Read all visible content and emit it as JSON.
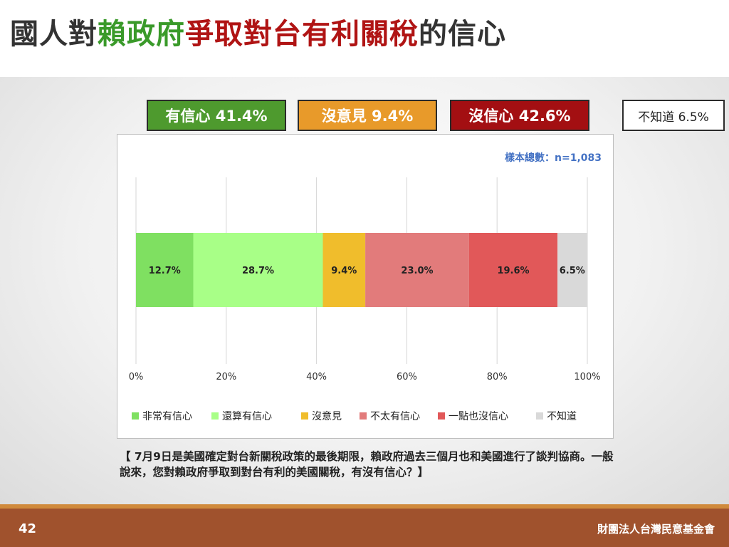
{
  "title": {
    "part1": "國人對",
    "part2": "賴政府",
    "part3": "爭取對台有利關稅",
    "part4": "的信心",
    "colors": [
      "#333333",
      "#3a9a2a",
      "#b01414",
      "#333333"
    ]
  },
  "summary": [
    {
      "label": "有信心 41.4%",
      "bg": "#4e9a2e"
    },
    {
      "label": "沒意見 9.4%",
      "bg": "#e89a2a"
    },
    {
      "label": "沒信心 42.6%",
      "bg": "#a30f12"
    },
    {
      "label": "不知道 6.5%",
      "bg": "#ffffff"
    }
  ],
  "sample_note": "樣本總數：n=1,083",
  "chart_data": {
    "type": "bar",
    "orientation": "horizontal",
    "stacked": true,
    "xlim": [
      0,
      100
    ],
    "x_ticks": [
      "0%",
      "20%",
      "40%",
      "60%",
      "80%",
      "100%"
    ],
    "grid": true,
    "legend_position": "bottom",
    "series": [
      {
        "name": "非常有信心",
        "value": 12.7,
        "label": "12.7%",
        "color": "#7fe061"
      },
      {
        "name": "還算有信心",
        "value": 28.7,
        "label": "28.7%",
        "color": "#a8ff87"
      },
      {
        "name": "沒意見",
        "value": 9.4,
        "label": "9.4%",
        "color": "#f0bd2c"
      },
      {
        "name": "不太有信心",
        "value": 23.0,
        "label": "23.0%",
        "color": "#e27b7b"
      },
      {
        "name": "一點也沒信心",
        "value": 19.6,
        "label": "19.6%",
        "color": "#e15859"
      },
      {
        "name": "不知道",
        "value": 6.5,
        "label": "6.5%",
        "color": "#d9d9d9"
      }
    ]
  },
  "question": "【 7月9日是美國確定對台新關稅政策的最後期限，賴政府過去三個月也和美國進行了談判協商。一般說來，您對賴政府爭取到對台有利的美國關稅，有沒有信心？】",
  "footer": {
    "page_number": "42",
    "organization": "財團法人台灣民意基金會"
  }
}
